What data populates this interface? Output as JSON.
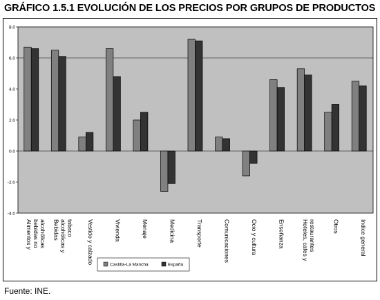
{
  "title": "GRÁFICO 1.5.1 EVOLUCIÓN DE LOS PRECIOS POR GRUPOS DE PRODUCTOS",
  "source": "Fuente: INE.",
  "colors": {
    "plot_bg": "#c0c0c0",
    "series1": "#808080",
    "series2": "#333333"
  },
  "chart_data": {
    "type": "bar",
    "title": "",
    "xlabel": "",
    "ylabel": "",
    "ylim": [
      -4.0,
      8.0
    ],
    "yticks": [
      "8.0",
      "6.0",
      "4.0",
      "2.0",
      "0.0",
      "-2.0",
      "-4.0"
    ],
    "reference_line": 6.0,
    "grid": false,
    "legend_position": "bottom",
    "categories": [
      [
        "Alimentos y",
        "bebidas no",
        "alcohólicas"
      ],
      [
        "Bebidas",
        "alcohólicas y",
        "tabaco"
      ],
      [
        "Vestido y calzado"
      ],
      [
        "Vivienda"
      ],
      [
        "Menaje"
      ],
      [
        "Medicina"
      ],
      [
        "Transporte"
      ],
      [
        "Comunicaciones"
      ],
      [
        "Ocio y cultura"
      ],
      [
        "Enseñanza"
      ],
      [
        "Hoteles, cafes y",
        "restaurantes"
      ],
      [
        "Otros"
      ],
      [
        "Indice general"
      ]
    ],
    "series": [
      {
        "name": "Castilla-La Mancha",
        "values": [
          6.7,
          6.5,
          0.9,
          6.6,
          2.0,
          -2.6,
          7.2,
          0.9,
          -1.6,
          4.6,
          5.3,
          2.5,
          4.5
        ]
      },
      {
        "name": "España",
        "values": [
          6.6,
          6.1,
          1.2,
          4.8,
          2.5,
          -2.1,
          7.1,
          0.8,
          -0.8,
          4.1,
          4.9,
          3.0,
          4.2
        ]
      }
    ]
  }
}
